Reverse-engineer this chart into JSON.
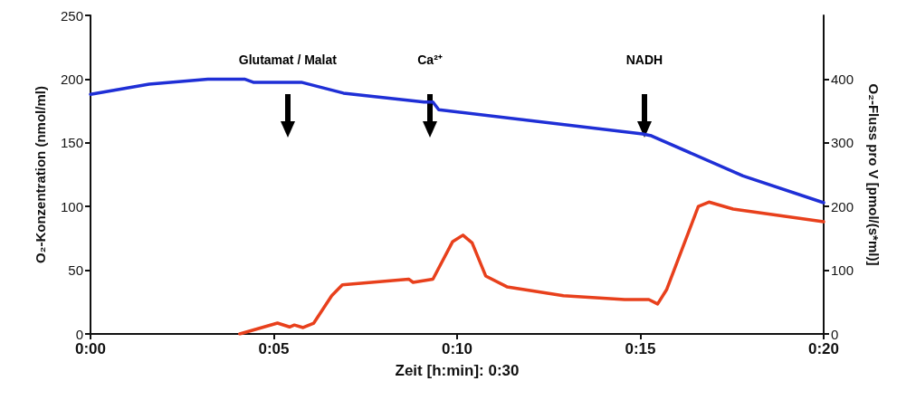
{
  "chart_data": {
    "type": "line",
    "xlabel": "Zeit [h:min]: 0:30",
    "ylabel": "O₂-Konzentration (nmol/ml)",
    "y2label": "O₂-Fluss pro V [pmol/(s*ml)]",
    "xlim": [
      0,
      20
    ],
    "xticks": [
      {
        "value": 0,
        "label": "0:00"
      },
      {
        "value": 5,
        "label": "0:05"
      },
      {
        "value": 10,
        "label": "0:10"
      },
      {
        "value": 15,
        "label": "0:15"
      },
      {
        "value": 20,
        "label": "0:20"
      }
    ],
    "ylim": [
      0,
      250
    ],
    "yticks": [
      0,
      50,
      100,
      150,
      200,
      250
    ],
    "y2lim": [
      0,
      500
    ],
    "y2ticks": [
      0,
      100,
      200,
      300,
      400
    ],
    "grid": false,
    "marker": "none",
    "line_style": "solid",
    "series": [
      {
        "color": "#1f2fd6",
        "x": [
          0,
          1.6,
          3.2,
          4.2,
          4.44,
          5.75,
          6.9,
          9.1,
          9.34,
          9.5,
          15.06,
          15.3,
          17.8,
          20
        ],
        "values": [
          188,
          196,
          200,
          200,
          197.5,
          197.5,
          189,
          182,
          182,
          176,
          157,
          155.5,
          124,
          103
        ]
      },
      {
        "color": "#e8401c",
        "axis": "y2",
        "x": [
          4.07,
          5.1,
          5.43,
          5.56,
          5.8,
          6.09,
          6.58,
          6.87,
          8.68,
          8.8,
          9.34,
          9.88,
          10.16,
          10.41,
          10.78,
          11.36,
          12.9,
          14.57,
          15.23,
          15.47,
          15.72,
          16.58,
          16.87,
          17.53,
          20
        ],
        "values": [
          0,
          17,
          11,
          14,
          10,
          17,
          60,
          77,
          86,
          81,
          86,
          145,
          155,
          143,
          91,
          74,
          60,
          54,
          54,
          47,
          70,
          200,
          207,
          196,
          176
        ]
      }
    ],
    "annotations": [
      "Glutamat / Malat",
      "Ca²⁺",
      "NADH"
    ]
  }
}
